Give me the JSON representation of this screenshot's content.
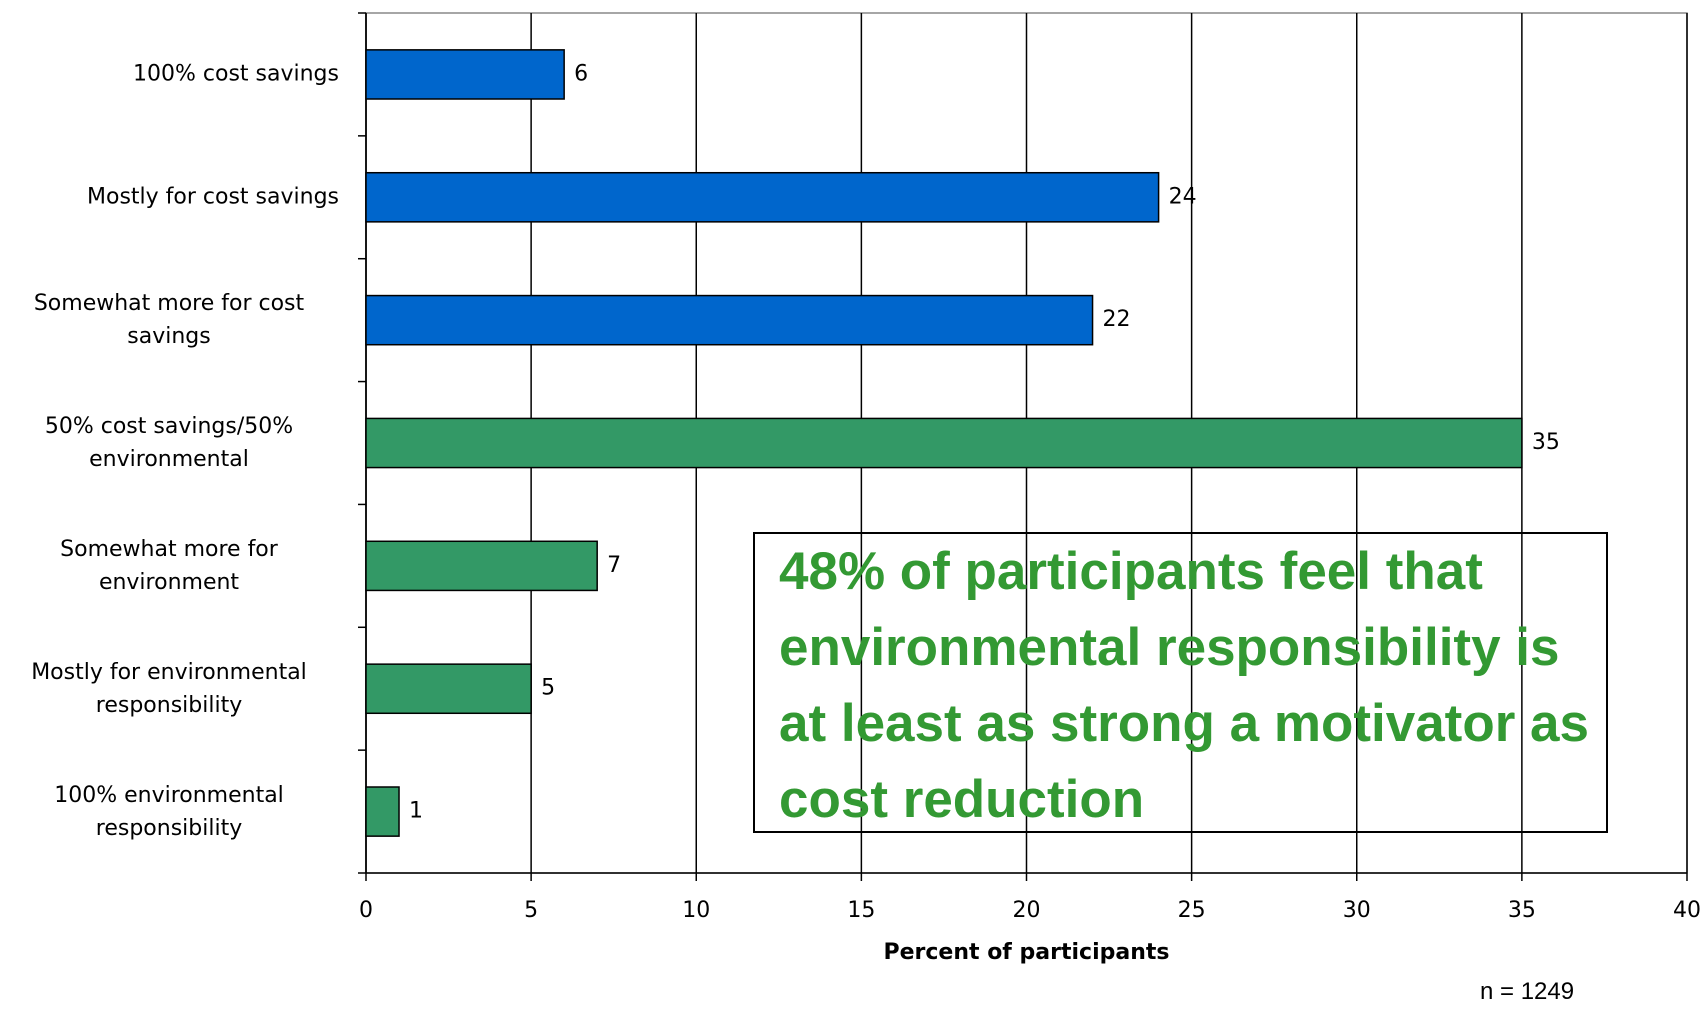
{
  "chart_data": {
    "type": "bar",
    "orientation": "horizontal",
    "categories": [
      "100% cost savings",
      "Mostly for cost savings",
      "Somewhat more for cost savings",
      "50% cost savings/50% environmental",
      "Somewhat more for environment",
      "Mostly for environmental responsibility",
      "100% environmental responsibility"
    ],
    "values": [
      6,
      24,
      22,
      35,
      7,
      5,
      1
    ],
    "colors": [
      "#0066cc",
      "#0066cc",
      "#0066cc",
      "#339966",
      "#339966",
      "#339966",
      "#339966"
    ],
    "xlabel": "Percent of participants",
    "xlim": [
      0,
      40
    ],
    "xticks": [
      0,
      5,
      10,
      15,
      20,
      25,
      30,
      35,
      40
    ],
    "grid": true,
    "annotation": "48% of participants feel that environmental responsibility is at least as strong a motivator as cost reduction",
    "note": "n = 1249"
  }
}
